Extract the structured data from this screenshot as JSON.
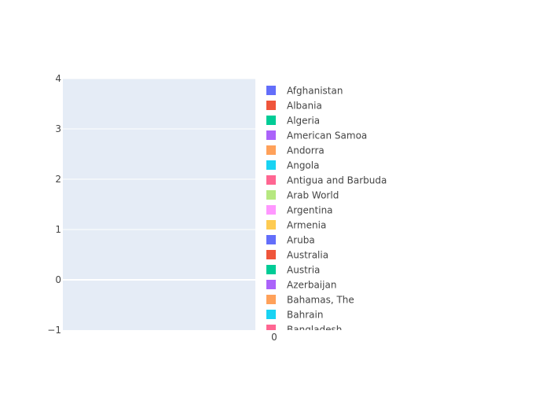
{
  "chart_data": {
    "type": "bar",
    "title": "",
    "xlabel": "",
    "ylabel": "",
    "x_tick_labels": [
      "0"
    ],
    "y_tick_labels": [
      "−1",
      "0",
      "1",
      "2",
      "3",
      "4"
    ],
    "y_tick_values": [
      -1,
      0,
      1,
      2,
      3,
      4
    ],
    "ylim": [
      -1,
      4
    ],
    "grid": true,
    "legend_position": "right",
    "series": [
      {
        "name": "Afghanistan",
        "color": "#636efa",
        "values": []
      },
      {
        "name": "Albania",
        "color": "#EF553B",
        "values": []
      },
      {
        "name": "Algeria",
        "color": "#00cc96",
        "values": []
      },
      {
        "name": "American Samoa",
        "color": "#ab63fa",
        "values": []
      },
      {
        "name": "Andorra",
        "color": "#FFA15A",
        "values": []
      },
      {
        "name": "Angola",
        "color": "#19d3f3",
        "values": []
      },
      {
        "name": "Antigua and Barbuda",
        "color": "#FF6692",
        "values": []
      },
      {
        "name": "Arab World",
        "color": "#B6E880",
        "values": []
      },
      {
        "name": "Argentina",
        "color": "#FF97FF",
        "values": []
      },
      {
        "name": "Armenia",
        "color": "#FECB52",
        "values": []
      },
      {
        "name": "Aruba",
        "color": "#636efa",
        "values": []
      },
      {
        "name": "Australia",
        "color": "#EF553B",
        "values": []
      },
      {
        "name": "Austria",
        "color": "#00cc96",
        "values": []
      },
      {
        "name": "Azerbaijan",
        "color": "#ab63fa",
        "values": []
      },
      {
        "name": "Bahamas, The",
        "color": "#FFA15A",
        "values": []
      },
      {
        "name": "Bahrain",
        "color": "#19d3f3",
        "values": []
      },
      {
        "name": "Bangladesh",
        "color": "#FF6692",
        "values": []
      }
    ]
  }
}
